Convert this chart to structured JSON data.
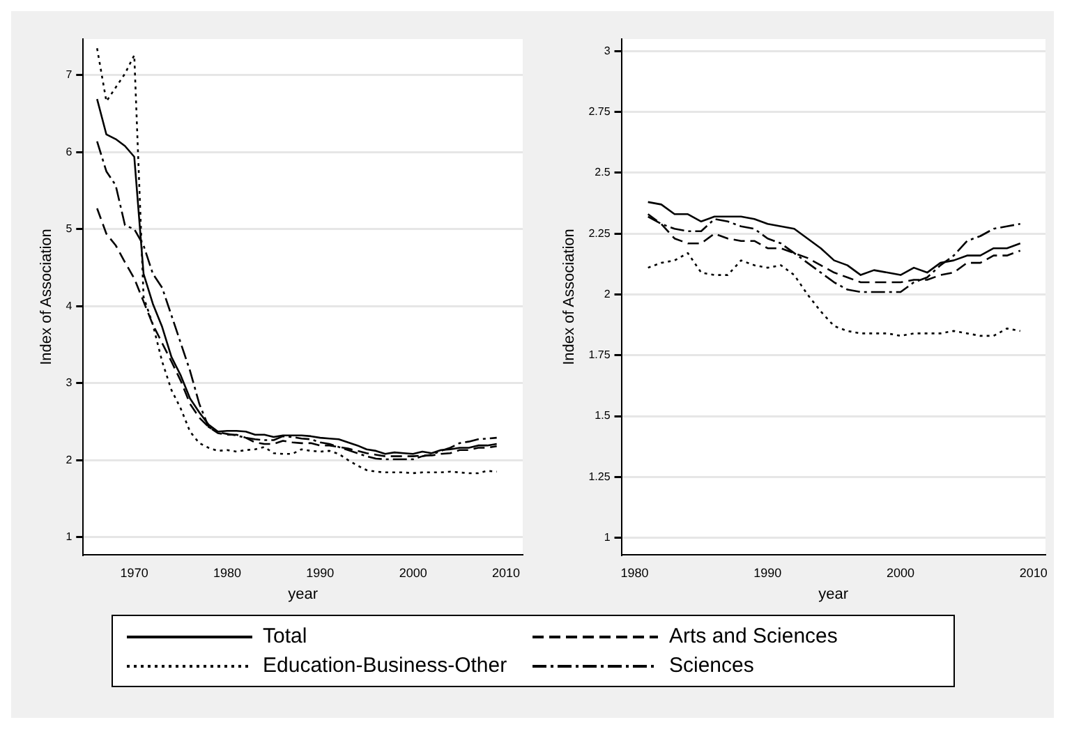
{
  "chart_data": [
    {
      "type": "line",
      "xlabel": "year",
      "ylabel": "Index of Association",
      "x": [
        1966,
        1967,
        1968,
        1969,
        1970,
        1971,
        1972,
        1973,
        1974,
        1975,
        1976,
        1977,
        1978,
        1979,
        1980,
        1981,
        1982,
        1983,
        1984,
        1985,
        1986,
        1987,
        1988,
        1989,
        1990,
        1991,
        1992,
        1993,
        1994,
        1995,
        1996,
        1997,
        1998,
        1999,
        2000,
        2001,
        2002,
        2003,
        2004,
        2005,
        2006,
        2007,
        2008,
        2009
      ],
      "series": [
        {
          "name": "Total",
          "color": "#000000",
          "line_style": "solid",
          "values": [
            6.69,
            6.23,
            6.17,
            6.08,
            5.94,
            4.42,
            4.03,
            3.73,
            3.34,
            3.1,
            2.8,
            2.62,
            2.46,
            2.37,
            2.38,
            2.38,
            2.37,
            2.33,
            2.33,
            2.3,
            2.32,
            2.32,
            2.32,
            2.31,
            2.29,
            2.28,
            2.27,
            2.23,
            2.19,
            2.14,
            2.12,
            2.08,
            2.1,
            2.09,
            2.08,
            2.11,
            2.09,
            2.13,
            2.14,
            2.16,
            2.16,
            2.19,
            2.19,
            2.21
          ]
        },
        {
          "name": "Arts and Sciences",
          "color": "#000000",
          "line_style": "dashed",
          "values": [
            5.27,
            4.94,
            4.79,
            4.57,
            4.36,
            4.06,
            3.76,
            3.52,
            3.28,
            3.03,
            2.73,
            2.55,
            2.43,
            2.35,
            2.33,
            2.33,
            2.29,
            2.23,
            2.21,
            2.21,
            2.25,
            2.23,
            2.22,
            2.22,
            2.19,
            2.19,
            2.17,
            2.15,
            2.12,
            2.09,
            2.07,
            2.05,
            2.05,
            2.05,
            2.05,
            2.06,
            2.06,
            2.08,
            2.09,
            2.13,
            2.13,
            2.16,
            2.16,
            2.18
          ]
        },
        {
          "name": "Education-Business-Other",
          "color": "#000000",
          "line_style": "dotted",
          "values": [
            7.35,
            6.66,
            6.84,
            7.02,
            7.26,
            4.12,
            3.76,
            3.28,
            2.91,
            2.67,
            2.37,
            2.22,
            2.16,
            2.12,
            2.13,
            2.11,
            2.13,
            2.14,
            2.17,
            2.09,
            2.08,
            2.08,
            2.14,
            2.12,
            2.11,
            2.12,
            2.08,
            2.0,
            1.93,
            1.87,
            1.85,
            1.84,
            1.84,
            1.84,
            1.83,
            1.84,
            1.84,
            1.84,
            1.85,
            1.84,
            1.83,
            1.83,
            1.86,
            1.85
          ]
        },
        {
          "name": "Sciences",
          "color": "#000000",
          "line_style": "dashdot",
          "values": [
            6.14,
            5.75,
            5.57,
            5.05,
            5.0,
            4.79,
            4.42,
            4.24,
            3.88,
            3.52,
            3.16,
            2.73,
            2.43,
            2.36,
            2.34,
            2.32,
            2.29,
            2.27,
            2.26,
            2.26,
            2.31,
            2.3,
            2.28,
            2.27,
            2.23,
            2.21,
            2.17,
            2.13,
            2.09,
            2.05,
            2.02,
            2.01,
            2.01,
            2.01,
            2.01,
            2.05,
            2.07,
            2.12,
            2.16,
            2.22,
            2.24,
            2.27,
            2.28,
            2.29
          ]
        }
      ],
      "xlim": [
        1964.5,
        2011.8
      ],
      "xticks": [
        1970,
        1980,
        1990,
        2000,
        2010
      ],
      "ylim": [
        0.77,
        7.47
      ],
      "yticks": [
        1,
        2,
        3,
        4,
        5,
        6,
        7
      ],
      "grid": "y",
      "legend": "bottom"
    },
    {
      "type": "line",
      "xlabel": "year",
      "ylabel": "Index of Association",
      "x": [
        1981,
        1982,
        1983,
        1984,
        1985,
        1986,
        1987,
        1988,
        1989,
        1990,
        1991,
        1992,
        1993,
        1994,
        1995,
        1996,
        1997,
        1998,
        1999,
        2000,
        2001,
        2002,
        2003,
        2004,
        2005,
        2006,
        2007,
        2008,
        2009
      ],
      "series": [
        {
          "color": "#000000",
          "line_style": "solid",
          "values": [
            2.38,
            2.37,
            2.33,
            2.33,
            2.3,
            2.32,
            2.32,
            2.32,
            2.31,
            2.29,
            2.28,
            2.27,
            2.23,
            2.19,
            2.14,
            2.12,
            2.08,
            2.1,
            2.09,
            2.08,
            2.11,
            2.09,
            2.13,
            2.14,
            2.16,
            2.16,
            2.19,
            2.19,
            2.21
          ]
        },
        {
          "color": "#000000",
          "line_style": "dashed",
          "values": [
            2.33,
            2.29,
            2.23,
            2.21,
            2.21,
            2.25,
            2.23,
            2.22,
            2.22,
            2.19,
            2.19,
            2.17,
            2.15,
            2.12,
            2.09,
            2.07,
            2.05,
            2.05,
            2.05,
            2.05,
            2.06,
            2.06,
            2.08,
            2.09,
            2.13,
            2.13,
            2.16,
            2.16,
            2.18
          ]
        },
        {
          "color": "#000000",
          "line_style": "dotted",
          "values": [
            2.11,
            2.13,
            2.14,
            2.17,
            2.09,
            2.08,
            2.08,
            2.14,
            2.12,
            2.11,
            2.12,
            2.08,
            2.0,
            1.93,
            1.87,
            1.85,
            1.84,
            1.84,
            1.84,
            1.83,
            1.84,
            1.84,
            1.84,
            1.85,
            1.84,
            1.83,
            1.83,
            1.86,
            1.85
          ]
        },
        {
          "color": "#000000",
          "line_style": "dashdot",
          "values": [
            2.32,
            2.29,
            2.27,
            2.26,
            2.26,
            2.31,
            2.3,
            2.28,
            2.27,
            2.23,
            2.21,
            2.17,
            2.13,
            2.09,
            2.05,
            2.02,
            2.01,
            2.01,
            2.01,
            2.01,
            2.05,
            2.07,
            2.12,
            2.16,
            2.22,
            2.24,
            2.27,
            2.28,
            2.29
          ]
        }
      ],
      "xlim": [
        1979,
        2010.9
      ],
      "xticks": [
        1980,
        1990,
        2000,
        2010
      ],
      "ylim": [
        0.93,
        3.05
      ],
      "yticks": [
        1,
        1.25,
        1.5,
        1.75,
        2,
        2.25,
        2.5,
        2.75,
        3
      ],
      "grid": "y"
    }
  ]
}
